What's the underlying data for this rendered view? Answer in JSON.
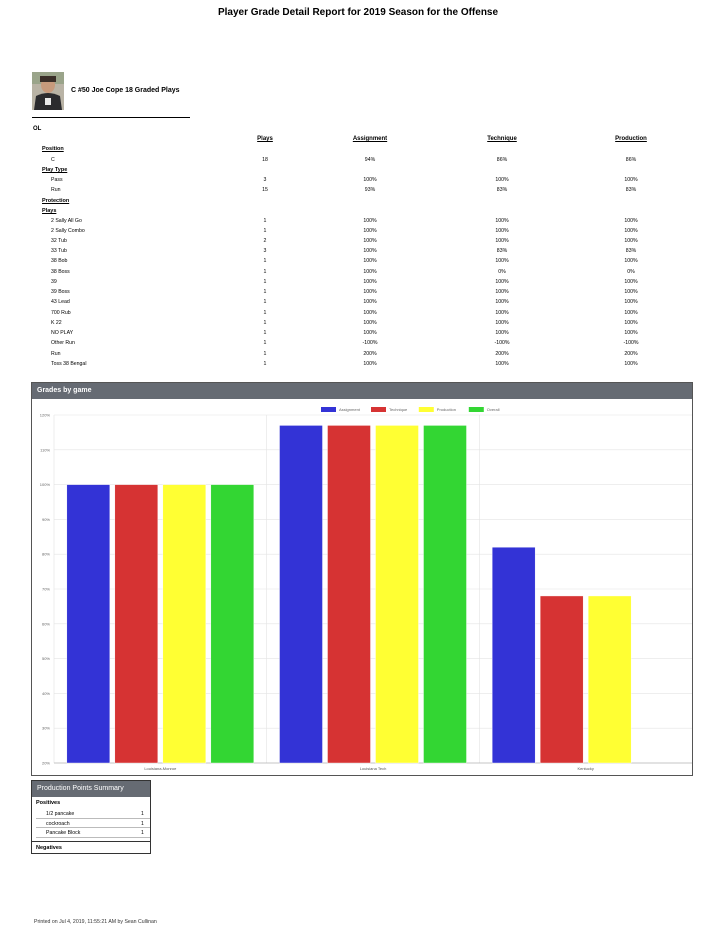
{
  "report": {
    "title": "Player Grade Detail Report for 2019 Season for the Offense"
  },
  "player": {
    "name_line": "C #50 Joe Cope  18 Graded Plays"
  },
  "group_label": "OL",
  "table": {
    "columns": [
      "Plays",
      "Assignment",
      "Technique",
      "Production"
    ],
    "rows": [
      {
        "kind": "section",
        "label": "Position"
      },
      {
        "kind": "data",
        "label": "C",
        "values": [
          "18",
          "94%",
          "86%",
          "86%"
        ]
      },
      {
        "kind": "section",
        "label": "Play Type"
      },
      {
        "kind": "data",
        "label": "Pass",
        "values": [
          "3",
          "100%",
          "100%",
          "100%"
        ]
      },
      {
        "kind": "data",
        "label": "Run",
        "values": [
          "15",
          "93%",
          "83%",
          "83%"
        ]
      },
      {
        "kind": "section",
        "label": "Protection"
      },
      {
        "kind": "section",
        "label": "Plays"
      },
      {
        "kind": "data",
        "label": "2 Sally All Go",
        "values": [
          "1",
          "100%",
          "100%",
          "100%"
        ]
      },
      {
        "kind": "data",
        "label": "2 Sally Combo",
        "values": [
          "1",
          "100%",
          "100%",
          "100%"
        ]
      },
      {
        "kind": "data",
        "label": "32 Tub",
        "values": [
          "2",
          "100%",
          "100%",
          "100%"
        ]
      },
      {
        "kind": "data",
        "label": "33 Tub",
        "values": [
          "3",
          "100%",
          "83%",
          "83%"
        ]
      },
      {
        "kind": "data",
        "label": "38 Bob",
        "values": [
          "1",
          "100%",
          "100%",
          "100%"
        ]
      },
      {
        "kind": "data",
        "label": "38 Boss",
        "values": [
          "1",
          "100%",
          "0%",
          "0%"
        ]
      },
      {
        "kind": "data",
        "label": "39",
        "values": [
          "1",
          "100%",
          "100%",
          "100%"
        ]
      },
      {
        "kind": "data",
        "label": "39 Boss",
        "values": [
          "1",
          "100%",
          "100%",
          "100%"
        ]
      },
      {
        "kind": "data",
        "label": "43 Lead",
        "values": [
          "1",
          "100%",
          "100%",
          "100%"
        ]
      },
      {
        "kind": "data",
        "label": "700 Rub",
        "values": [
          "1",
          "100%",
          "100%",
          "100%"
        ]
      },
      {
        "kind": "data",
        "label": "K 22",
        "values": [
          "1",
          "100%",
          "100%",
          "100%"
        ]
      },
      {
        "kind": "data",
        "label": "NO PLAY",
        "values": [
          "1",
          "100%",
          "100%",
          "100%"
        ]
      },
      {
        "kind": "data",
        "label": "Other Run",
        "values": [
          "1",
          "-100%",
          "-100%",
          "-100%"
        ]
      },
      {
        "kind": "data",
        "label": "Run",
        "values": [
          "1",
          "200%",
          "200%",
          "200%"
        ]
      },
      {
        "kind": "data",
        "label": "Toss 38 Bengal",
        "values": [
          "1",
          "100%",
          "100%",
          "100%"
        ]
      }
    ]
  },
  "chart_panel": {
    "title": "Grades by game"
  },
  "chart_data": {
    "type": "bar",
    "categories": [
      "Louisiana-Monroe",
      "Louisiana Tech",
      "Kentucky"
    ],
    "series": [
      {
        "name": "Assignment",
        "color": "#3333d6",
        "values": [
          100,
          117,
          82
        ]
      },
      {
        "name": "Technique",
        "color": "#d63333",
        "values": [
          100,
          117,
          68
        ]
      },
      {
        "name": "Production",
        "color": "#ffff33",
        "values": [
          100,
          117,
          68
        ]
      },
      {
        "name": "Overall",
        "color": "#33d633",
        "values": [
          100,
          117,
          null
        ]
      }
    ],
    "y_ticks": [
      "20%",
      "30%",
      "40%",
      "50%",
      "60%",
      "70%",
      "80%",
      "90%",
      "100%",
      "110%",
      "120%"
    ],
    "ylim": [
      20,
      120
    ],
    "legend_position": "top",
    "grid": true
  },
  "production_points": {
    "title": "Production Points Summary",
    "positives_label": "Positives",
    "positives": [
      {
        "label": "1/2 pancake",
        "value": "1"
      },
      {
        "label": "cockroach",
        "value": "1"
      },
      {
        "label": "Pancake Block",
        "value": "1"
      }
    ],
    "negatives_label": "Negatives"
  },
  "footer": {
    "printed": "Printed on Jul 4, 2019, 11:55:21 AM by Sean Cullinan"
  }
}
